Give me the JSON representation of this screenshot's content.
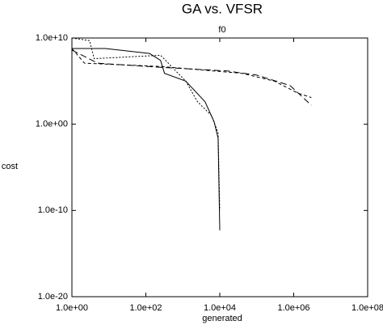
{
  "chart_data": {
    "type": "line",
    "title": "GA vs. VFSR",
    "subtitle": "f0",
    "x_label": "generated",
    "y_label": "cost",
    "xscale": "log",
    "yscale": "log",
    "xlim": [
      1,
      100000000
    ],
    "ylim": [
      1e-20,
      10000000000
    ],
    "xticks": [
      {
        "value": 1,
        "label": "1.0e+00"
      },
      {
        "value": 100,
        "label": "1.0e+02"
      },
      {
        "value": 10000,
        "label": "1.0e+04"
      },
      {
        "value": 1000000,
        "label": "1.0e+06"
      },
      {
        "value": 100000000,
        "label": "1.0e+08"
      }
    ],
    "yticks": [
      {
        "value": 1e-20,
        "label": "1.0e-20"
      },
      {
        "value": 1e-10,
        "label": "1.0e-10"
      },
      {
        "value": 1,
        "label": "1.0e+00"
      },
      {
        "value": 10000000000,
        "label": "1.0e+10"
      }
    ],
    "series": [
      {
        "color": "#000000",
        "dash": "solid",
        "x": [
          1,
          8,
          126,
          250,
          320,
          1200,
          4000,
          7000,
          9000,
          10000
        ],
        "y": [
          600000000,
          600000000,
          160000000,
          25000000,
          800000,
          100000,
          400,
          2,
          0.025,
          5e-13
        ]
      },
      {
        "color": "#000000",
        "dash": "dotted",
        "x": [
          1,
          3,
          4,
          250,
          1200,
          2500,
          6000,
          9000,
          10000
        ],
        "y": [
          10000000000,
          5000000000,
          40000000,
          100000000,
          100000,
          400,
          10,
          0.1,
          1e-10
        ]
      },
      {
        "color": "#000000",
        "dash": "dashed",
        "x": [
          1,
          2.2,
          250,
          40000,
          300000,
          1300000,
          3000000
        ],
        "y": [
          600000000,
          12000000,
          5000000,
          800000,
          100000,
          4000,
          1250
        ]
      },
      {
        "color": "#000000",
        "dash": "longdash",
        "x": [
          1,
          5,
          250,
          16000,
          100000,
          800000,
          3000000
        ],
        "y": [
          400000000,
          12000000,
          4000000,
          1500000,
          500000,
          30000,
          160
        ]
      }
    ]
  }
}
